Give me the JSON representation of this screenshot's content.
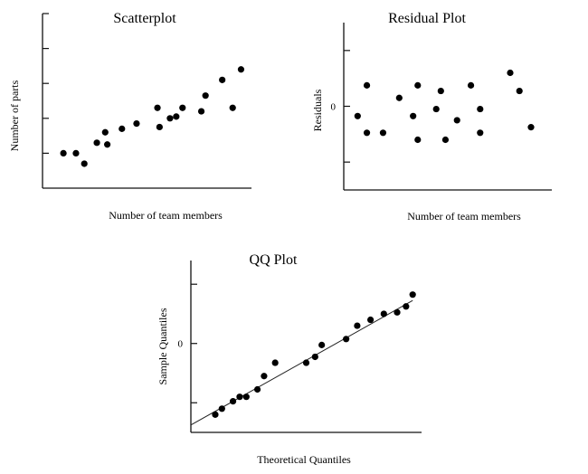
{
  "chart_data": [
    {
      "type": "scatter",
      "title": "Scatterplot",
      "xlabel": "Number of team members",
      "ylabel": "Number of parts",
      "ytick_labels": [],
      "points": [
        {
          "x": 1.0,
          "y": 1.0
        },
        {
          "x": 1.6,
          "y": 1.0
        },
        {
          "x": 2.0,
          "y": 0.7
        },
        {
          "x": 2.6,
          "y": 1.3
        },
        {
          "x": 3.0,
          "y": 1.6
        },
        {
          "x": 3.1,
          "y": 1.25
        },
        {
          "x": 3.8,
          "y": 1.7
        },
        {
          "x": 4.5,
          "y": 1.85
        },
        {
          "x": 5.5,
          "y": 2.3
        },
        {
          "x": 5.6,
          "y": 1.75
        },
        {
          "x": 6.1,
          "y": 2.0
        },
        {
          "x": 6.4,
          "y": 2.05
        },
        {
          "x": 6.7,
          "y": 2.3
        },
        {
          "x": 7.6,
          "y": 2.2
        },
        {
          "x": 7.8,
          "y": 2.65
        },
        {
          "x": 8.6,
          "y": 3.1
        },
        {
          "x": 9.1,
          "y": 2.3
        },
        {
          "x": 9.5,
          "y": 3.4
        }
      ],
      "xlim": [
        0,
        10
      ],
      "ylim": [
        0,
        5
      ],
      "yticks": [
        1,
        2,
        3,
        4,
        5
      ],
      "grid": false,
      "legend": false
    },
    {
      "type": "scatter",
      "title": "Residual Plot",
      "xlabel": "Number of team members",
      "ylabel": "Residuals",
      "ytick_labels": [
        "0"
      ],
      "points": [
        {
          "x": 0.6,
          "y": -0.35
        },
        {
          "x": 1.0,
          "y": 0.75
        },
        {
          "x": 1.0,
          "y": -0.95
        },
        {
          "x": 1.7,
          "y": -0.95
        },
        {
          "x": 2.4,
          "y": 0.3
        },
        {
          "x": 3.0,
          "y": -0.35
        },
        {
          "x": 3.2,
          "y": 0.75
        },
        {
          "x": 3.2,
          "y": -1.2
        },
        {
          "x": 4.0,
          "y": -0.1
        },
        {
          "x": 4.2,
          "y": 0.55
        },
        {
          "x": 4.4,
          "y": -1.2
        },
        {
          "x": 4.9,
          "y": -0.5
        },
        {
          "x": 5.5,
          "y": 0.75
        },
        {
          "x": 5.9,
          "y": -0.95
        },
        {
          "x": 5.9,
          "y": -0.1
        },
        {
          "x": 7.2,
          "y": 1.2
        },
        {
          "x": 7.6,
          "y": 0.55
        },
        {
          "x": 8.1,
          "y": -0.75
        }
      ],
      "xlim": [
        0,
        9
      ],
      "ylim": [
        -3,
        3
      ],
      "yticks": [
        -2,
        0,
        2
      ],
      "grid": false,
      "legend": false
    },
    {
      "type": "scatter",
      "title": "QQ Plot",
      "xlabel": "Theoretical Quantiles",
      "ylabel": "Sample Quantiles",
      "ytick_labels": [
        "0"
      ],
      "points": [
        {
          "x": -1.95,
          "y": -2.4
        },
        {
          "x": -1.8,
          "y": -2.2
        },
        {
          "x": -1.55,
          "y": -1.95
        },
        {
          "x": -1.4,
          "y": -1.8
        },
        {
          "x": -1.25,
          "y": -1.8
        },
        {
          "x": -1.0,
          "y": -1.55
        },
        {
          "x": -0.85,
          "y": -1.1
        },
        {
          "x": -0.6,
          "y": -0.65
        },
        {
          "x": 0.1,
          "y": -0.65
        },
        {
          "x": 0.3,
          "y": -0.45
        },
        {
          "x": 0.45,
          "y": -0.05
        },
        {
          "x": 1.0,
          "y": 0.15
        },
        {
          "x": 1.25,
          "y": 0.6
        },
        {
          "x": 1.55,
          "y": 0.8
        },
        {
          "x": 1.85,
          "y": 1.0
        },
        {
          "x": 2.15,
          "y": 1.05
        },
        {
          "x": 2.35,
          "y": 1.25
        },
        {
          "x": 2.5,
          "y": 1.65
        }
      ],
      "fit_line": {
        "x": [
          -2.5,
          2.5
        ],
        "y": [
          -2.75,
          1.45
        ]
      },
      "xlim": [
        -2.5,
        2.7
      ],
      "ylim": [
        -3,
        2.8
      ],
      "yticks": [
        -2,
        0,
        2
      ],
      "grid": false,
      "legend": false
    }
  ]
}
